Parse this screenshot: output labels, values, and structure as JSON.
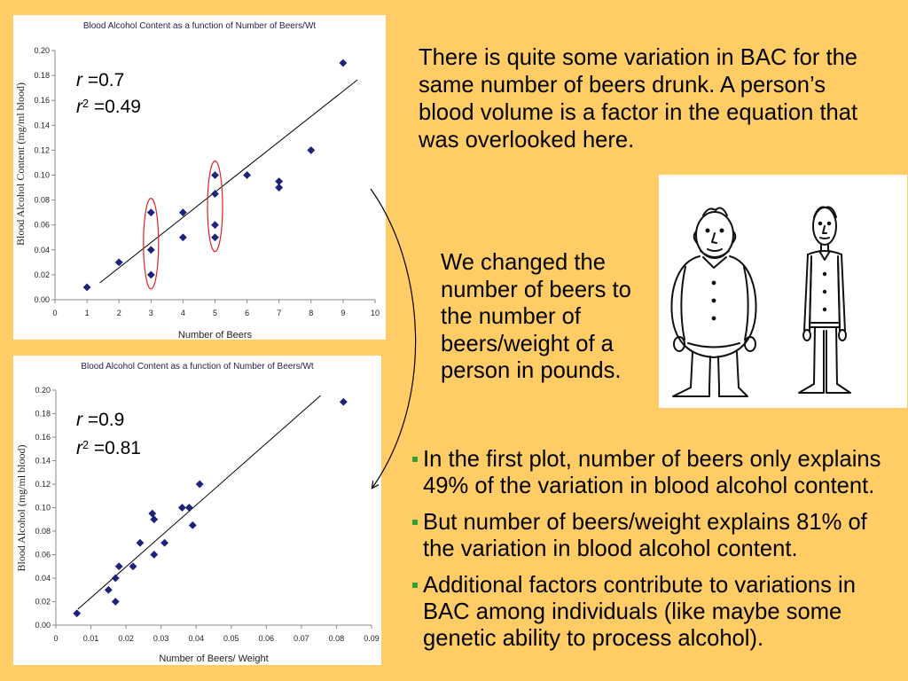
{
  "slide": {
    "background_color": "#FFCC66",
    "intro_text": {
      "lines": [
        "There is quite some variation in BAC for the",
        "same number of beers drunk. A person’s",
        "blood volume is a factor in the equation that",
        "was overlooked here."
      ]
    },
    "change_note": {
      "lines": [
        "We changed the",
        "number of beers to",
        "the number of",
        "beers/weight of a",
        "person in pounds."
      ]
    },
    "bullet_icon": "green-square-bullet",
    "bullet_color": "#33A033",
    "bullets": [
      {
        "lines": [
          "In the first plot, number of beers only explains",
          "49% of the variation in blood alcohol content."
        ]
      },
      {
        "lines": [
          "But number of beers/weight explains 81% of",
          "the variation in blood alcohol content."
        ]
      },
      {
        "lines": [
          "Additional factors contribute to variations in",
          "BAC among individuals (like maybe some",
          "genetic ability to process alcohol)."
        ]
      }
    ],
    "cartoon": {
      "icon": "fat-man-and-thin-man-cartoon"
    },
    "arrow": {
      "icon": "curved-arrow"
    }
  },
  "chart_data": [
    {
      "type": "scatter",
      "title": "Blood Alcohol Content as a function of Number of Beers/Wt",
      "xlabel": "Number of Beers",
      "ylabel": "Blood Alcohol Content (mg/ml blood)",
      "xlim": [
        0,
        10
      ],
      "ylim": [
        0,
        0.2
      ],
      "xticks": [
        "0",
        "1",
        "2",
        "3",
        "4",
        "5",
        "6",
        "7",
        "8",
        "9",
        "10"
      ],
      "yticks": [
        "0.00",
        "0.02",
        "0.04",
        "0.06",
        "0.08",
        "0.10",
        "0.12",
        "0.14",
        "0.16",
        "0.18",
        "0.20"
      ],
      "grid": false,
      "marker": "diamond",
      "marker_color": "#1C237A",
      "points": [
        [
          1,
          0.01
        ],
        [
          2,
          0.03
        ],
        [
          3,
          0.07
        ],
        [
          3,
          0.04
        ],
        [
          3,
          0.02
        ],
        [
          4,
          0.07
        ],
        [
          4,
          0.05
        ],
        [
          5,
          0.1
        ],
        [
          5,
          0.085
        ],
        [
          5,
          0.06
        ],
        [
          5,
          0.05
        ],
        [
          6,
          0.1
        ],
        [
          7,
          0.095
        ],
        [
          7,
          0.09
        ],
        [
          8,
          0.12
        ],
        [
          9,
          0.19
        ]
      ],
      "trendline": [
        [
          1.4,
          0.0135
        ],
        [
          9.45,
          0.1765
        ]
      ],
      "trendline_color": "#000000",
      "highlight_x": [
        3,
        5
      ],
      "highlight_color": "#E02424",
      "stats": [
        {
          "symbol": "r",
          "sup": "",
          "value": " =0.7"
        },
        {
          "symbol": "r",
          "sup": "2",
          "value": " =0.49"
        }
      ]
    },
    {
      "type": "scatter",
      "title": "Blood Alcohol Content as a function of Number of Beers/Wt",
      "xlabel": "Number of Beers/ Weight",
      "ylabel": "Blood Alcohol (mg/ml blood)",
      "xlim": [
        0,
        0.09
      ],
      "ylim": [
        0,
        0.2
      ],
      "xticks": [
        "0",
        "0.01",
        "0.02",
        "0.03",
        "0.04",
        "0.05",
        "0.06",
        "0.07",
        "0.08",
        "0.09"
      ],
      "yticks": [
        "0.00",
        "0.02",
        "0.04",
        "0.06",
        "0.08",
        "0.10",
        "0.12",
        "0.14",
        "0.16",
        "0.18",
        "0.20"
      ],
      "grid": false,
      "marker": "diamond",
      "marker_color": "#1C237A",
      "points": [
        [
          0.006,
          0.01
        ],
        [
          0.015,
          0.03
        ],
        [
          0.017,
          0.02
        ],
        [
          0.017,
          0.04
        ],
        [
          0.018,
          0.05
        ],
        [
          0.022,
          0.05
        ],
        [
          0.024,
          0.07
        ],
        [
          0.0275,
          0.095
        ],
        [
          0.028,
          0.09
        ],
        [
          0.028,
          0.06
        ],
        [
          0.031,
          0.07
        ],
        [
          0.036,
          0.1
        ],
        [
          0.038,
          0.1
        ],
        [
          0.039,
          0.085
        ],
        [
          0.041,
          0.12
        ],
        [
          0.082,
          0.19
        ]
      ],
      "trendline": [
        [
          0.0063,
          0.0136
        ],
        [
          0.0755,
          0.1955
        ]
      ],
      "trendline_color": "#000000",
      "highlight_x": [],
      "highlight_color": "#E02424",
      "stats": [
        {
          "symbol": "r",
          "sup": "",
          "value": " =0.9"
        },
        {
          "symbol": "r",
          "sup": "2",
          "value": " =0.81"
        }
      ]
    }
  ]
}
